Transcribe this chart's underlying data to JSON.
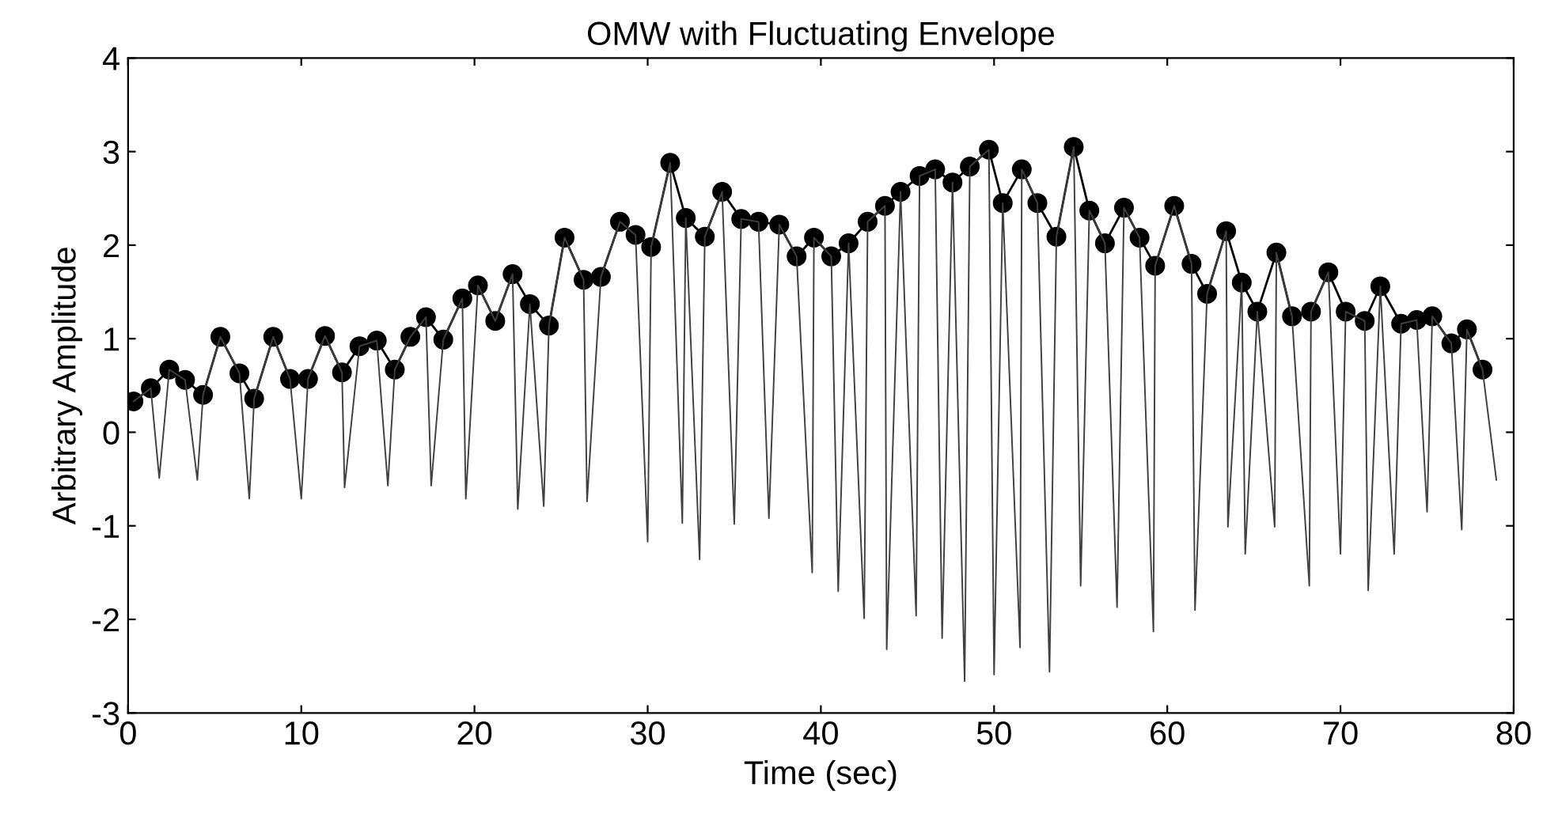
{
  "chart_data": {
    "type": "line",
    "title": "OMW with Fluctuating Envelope",
    "xlabel": "Time (sec)",
    "ylabel": "Arbitrary Amplitude",
    "xlim": [
      0,
      80
    ],
    "xticks": [
      0,
      10,
      20,
      30,
      40,
      50,
      60,
      70,
      80
    ],
    "ylim": [
      -3,
      4
    ],
    "yticks": [
      -3,
      -2,
      -1,
      0,
      1,
      2,
      3,
      4
    ],
    "grid": false,
    "legend": false,
    "series": [
      {
        "color": "#000000",
        "marker": "circle",
        "line_style": "solid",
        "x": [
          0.31,
          1.31,
          2.38,
          3.29,
          4.33,
          5.33,
          6.43,
          7.28,
          8.38,
          9.35,
          10.39,
          11.37,
          12.35,
          13.36,
          14.36,
          15.4,
          16.3,
          17.2,
          18.2,
          19.3,
          20.2,
          21.2,
          22.2,
          23.2,
          24.3,
          25.2,
          26.3,
          27.3,
          28.4,
          29.3,
          30.2,
          31.3,
          32.2,
          33.3,
          34.3,
          35.4,
          36.4,
          37.6,
          38.6,
          39.6,
          40.6,
          41.6,
          42.7,
          43.7,
          44.6,
          45.7,
          46.6,
          47.6,
          48.6,
          49.7,
          50.5,
          51.6,
          52.5,
          53.6,
          54.6,
          55.5,
          56.4,
          57.5,
          58.4,
          59.3,
          60.4,
          61.4,
          62.3,
          63.4,
          64.3,
          65.2,
          66.3,
          67.2,
          68.3,
          69.3,
          70.3,
          71.4,
          72.3,
          73.5,
          74.4,
          75.3,
          76.4,
          77.3,
          78.2
        ],
        "values": [
          0.33,
          0.47,
          0.67,
          0.56,
          0.4,
          1.02,
          0.63,
          0.36,
          1.02,
          0.57,
          0.57,
          1.03,
          0.64,
          0.92,
          0.98,
          0.67,
          1.02,
          1.23,
          0.99,
          1.43,
          1.57,
          1.19,
          1.69,
          1.37,
          1.14,
          2.08,
          1.63,
          1.66,
          2.25,
          2.11,
          1.98,
          2.88,
          2.29,
          2.09,
          2.57,
          2.28,
          2.25,
          2.22,
          1.88,
          2.08,
          1.88,
          2.02,
          2.25,
          2.42,
          2.57,
          2.74,
          2.81,
          2.67,
          2.84,
          3.02,
          2.45,
          2.81,
          2.45,
          2.09,
          3.05,
          2.37,
          2.02,
          2.4,
          2.08,
          1.78,
          2.42,
          1.8,
          1.48,
          2.15,
          1.6,
          1.29,
          1.92,
          1.24,
          1.29,
          1.71,
          1.29,
          1.19,
          1.56,
          1.16,
          1.2,
          1.24,
          0.95,
          1.1,
          0.67
        ]
      },
      {
        "color": "#404040",
        "marker": "none",
        "line_style": "solid",
        "x": [
          0.31,
          1.31,
          1.8,
          2.38,
          3.29,
          4.0,
          4.33,
          5.33,
          6.43,
          7.0,
          7.28,
          8.38,
          9.35,
          10.0,
          10.39,
          11.37,
          12.35,
          12.5,
          13.36,
          14.36,
          15.0,
          15.4,
          16.3,
          17.2,
          17.5,
          18.2,
          19.3,
          19.5,
          20.2,
          21.2,
          22.2,
          22.5,
          23.2,
          24.0,
          24.3,
          25.2,
          26.3,
          26.5,
          27.3,
          28.4,
          29.3,
          30.0,
          30.2,
          31.3,
          32.0,
          32.2,
          33.0,
          33.3,
          34.3,
          35.0,
          35.4,
          36.4,
          37.0,
          37.6,
          38.6,
          39.5,
          39.6,
          40.6,
          41.0,
          41.6,
          42.5,
          42.7,
          43.7,
          43.8,
          44.6,
          45.5,
          45.7,
          46.6,
          47.0,
          47.6,
          48.3,
          48.6,
          49.7,
          50.0,
          50.5,
          51.5,
          51.6,
          52.5,
          53.2,
          53.6,
          54.6,
          55.0,
          55.5,
          56.4,
          57.1,
          57.5,
          58.4,
          59.2,
          59.3,
          60.4,
          61.4,
          61.6,
          62.3,
          63.4,
          63.5,
          64.3,
          64.5,
          65.2,
          66.2,
          66.3,
          67.2,
          68.2,
          68.3,
          69.3,
          70.0,
          70.3,
          71.4,
          71.6,
          72.3,
          73.1,
          73.5,
          74.4,
          75.0,
          75.3,
          76.4,
          77.0,
          77.3,
          78.2,
          79.0
        ],
        "values": [
          0.33,
          0.47,
          -0.49,
          0.67,
          0.56,
          -0.51,
          0.4,
          1.02,
          0.63,
          -0.71,
          0.36,
          1.02,
          0.57,
          -0.71,
          0.57,
          1.03,
          0.64,
          -0.59,
          0.92,
          0.98,
          -0.57,
          0.67,
          1.02,
          1.23,
          -0.57,
          0.99,
          1.43,
          -0.71,
          1.57,
          1.19,
          1.69,
          -0.82,
          1.37,
          -0.79,
          1.14,
          2.08,
          1.63,
          -0.74,
          1.66,
          2.25,
          2.11,
          -1.17,
          1.98,
          2.88,
          -0.97,
          2.29,
          -1.36,
          2.09,
          2.57,
          -0.98,
          2.28,
          2.25,
          -0.92,
          2.22,
          1.88,
          -1.5,
          2.08,
          1.88,
          -1.7,
          2.02,
          -1.99,
          2.25,
          2.42,
          -2.32,
          2.57,
          -1.96,
          2.74,
          2.81,
          -2.2,
          2.67,
          -2.66,
          2.84,
          3.02,
          -2.59,
          2.45,
          -2.3,
          2.81,
          2.45,
          -2.56,
          2.09,
          3.05,
          -1.64,
          2.37,
          2.02,
          -1.87,
          2.4,
          2.08,
          -2.13,
          1.78,
          2.42,
          1.8,
          -1.9,
          1.48,
          2.15,
          -1.01,
          1.6,
          -1.3,
          1.29,
          -1.01,
          1.92,
          1.24,
          -1.64,
          1.29,
          1.71,
          -1.3,
          1.29,
          1.19,
          -1.69,
          1.56,
          -1.3,
          1.16,
          1.2,
          -0.85,
          1.24,
          0.95,
          -1.04,
          1.1,
          0.67,
          -0.51
        ]
      }
    ]
  }
}
